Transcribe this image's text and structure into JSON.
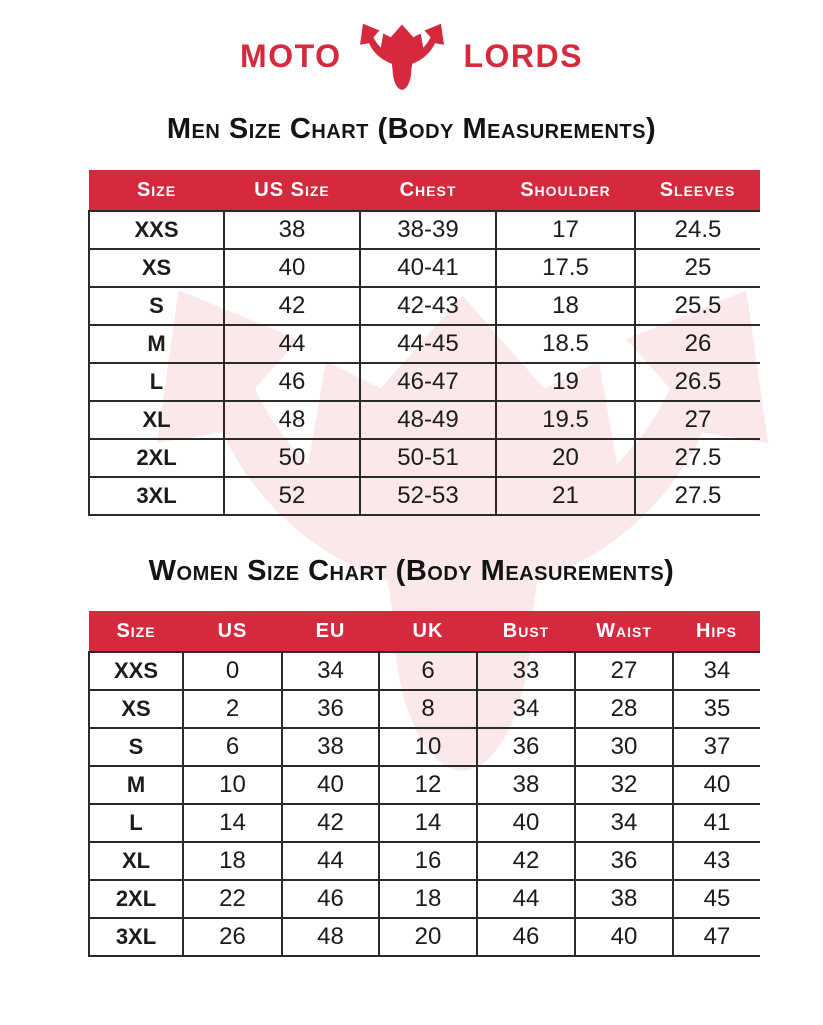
{
  "brand": {
    "word_left": "MOTO",
    "word_right": "LORDS",
    "accent_color": "#d5293d"
  },
  "icons": {
    "logo_icon": "bull-head-icon",
    "watermark_icon": "bull-head-watermark-icon"
  },
  "chart_data": [
    {
      "type": "table",
      "title": "Men Size Chart (Body Measurements)",
      "columns": [
        "Size",
        "US Size",
        "Chest",
        "Shoulder",
        "Sleeves"
      ],
      "rows": [
        [
          "XXS",
          "38",
          "38-39",
          "17",
          "24.5"
        ],
        [
          "XS",
          "40",
          "40-41",
          "17.5",
          "25"
        ],
        [
          "S",
          "42",
          "42-43",
          "18",
          "25.5"
        ],
        [
          "M",
          "44",
          "44-45",
          "18.5",
          "26"
        ],
        [
          "L",
          "46",
          "46-47",
          "19",
          "26.5"
        ],
        [
          "XL",
          "48",
          "48-49",
          "19.5",
          "27"
        ],
        [
          "2XL",
          "50",
          "50-51",
          "20",
          "27.5"
        ],
        [
          "3XL",
          "52",
          "52-53",
          "21",
          "27.5"
        ]
      ],
      "header_bg": "#d5293d",
      "header_text_color": "#ffffff"
    },
    {
      "type": "table",
      "title": "Women Size Chart (Body Measurements)",
      "columns": [
        "Size",
        "US",
        "EU",
        "UK",
        "Bust",
        "Waist",
        "Hips"
      ],
      "rows": [
        [
          "XXS",
          "0",
          "34",
          "6",
          "33",
          "27",
          "34"
        ],
        [
          "XS",
          "2",
          "36",
          "8",
          "34",
          "28",
          "35"
        ],
        [
          "S",
          "6",
          "38",
          "10",
          "36",
          "30",
          "37"
        ],
        [
          "M",
          "10",
          "40",
          "12",
          "38",
          "32",
          "40"
        ],
        [
          "L",
          "14",
          "42",
          "14",
          "40",
          "34",
          "41"
        ],
        [
          "XL",
          "18",
          "44",
          "16",
          "42",
          "36",
          "43"
        ],
        [
          "2XL",
          "22",
          "46",
          "18",
          "44",
          "38",
          "45"
        ],
        [
          "3XL",
          "26",
          "48",
          "20",
          "46",
          "40",
          "47"
        ]
      ],
      "header_bg": "#d5293d",
      "header_text_color": "#ffffff"
    }
  ]
}
